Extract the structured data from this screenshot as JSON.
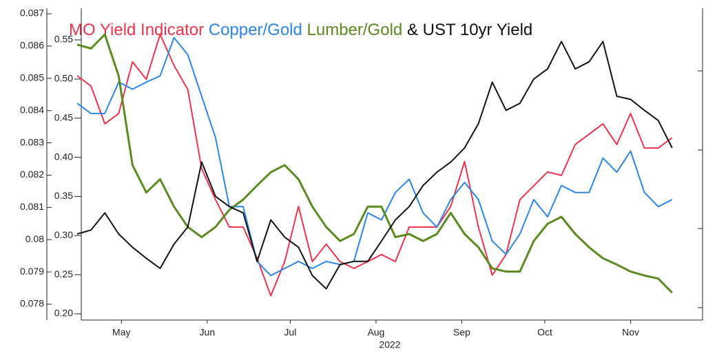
{
  "chart_data": {
    "type": "line",
    "legend_separator": "&",
    "x": [
      0,
      5,
      10,
      15,
      20,
      25,
      30,
      35,
      40,
      45,
      50,
      55,
      60,
      65,
      70,
      75,
      80,
      85,
      90,
      95,
      100,
      105,
      110,
      115,
      120,
      125,
      130,
      135,
      140,
      145,
      150,
      155,
      160,
      165,
      170,
      175,
      180,
      185,
      190,
      195,
      200,
      205,
      210,
      215
    ],
    "xlim": [
      0,
      226
    ],
    "xticks": [
      {
        "value": 16,
        "label": "May"
      },
      {
        "value": 47,
        "label": "Jun"
      },
      {
        "value": 77,
        "label": "Jul"
      },
      {
        "value": 108,
        "label": "Aug"
      },
      {
        "value": 139,
        "label": "Sep"
      },
      {
        "value": 169,
        "label": "Oct"
      },
      {
        "value": 200,
        "label": "Nov"
      }
    ],
    "xlabel": "2022",
    "ylim": [
      0.078,
      0.087
    ],
    "yticks": [
      0.078,
      0.079,
      0.08,
      0.081,
      0.082,
      0.083,
      0.084,
      0.085,
      0.086,
      0.087
    ],
    "y2lim": [
      0.2,
      0.55
    ],
    "y2ticks": [
      {
        "value": 0.2,
        "label": "0.20"
      },
      0.25,
      {
        "value": 0.3,
        "label": "0.30"
      },
      0.35,
      {
        "value": 0.4,
        "label": "0.40"
      },
      0.45,
      {
        "value": 0.5,
        "label": "0.50"
      },
      0.55
    ],
    "series": [
      {
        "name": "MO Yield Indicator",
        "color": "#f0324b",
        "values": [
          0.08508,
          0.08476,
          0.08359,
          0.08391,
          0.08551,
          0.08497,
          0.08636,
          0.0854,
          0.08465,
          0.0822,
          0.08124,
          0.08039,
          0.08039,
          0.07943,
          0.07826,
          0.07932,
          0.08103,
          0.07932,
          0.07986,
          0.07932,
          0.07911,
          0.07932,
          0.07954,
          0.07932,
          0.08039,
          0.08039,
          0.08039,
          0.08103,
          0.08242,
          0.08039,
          0.0789,
          0.07954,
          0.08124,
          0.08167,
          0.0821,
          0.08199,
          0.08295,
          0.08327,
          0.08359,
          0.08295,
          0.08391,
          0.08284,
          0.08284,
          0.08316
        ]
      },
      {
        "name": "Copper/Gold",
        "color": "#2a86e8",
        "axis": "y2",
        "values": [
          0.469,
          0.456,
          0.456,
          0.496,
          0.487,
          0.496,
          0.504,
          0.553,
          0.531,
          0.478,
          0.425,
          0.337,
          0.337,
          0.267,
          0.249,
          0.258,
          0.267,
          0.258,
          0.267,
          0.263,
          0.267,
          0.329,
          0.32,
          0.355,
          0.372,
          0.329,
          0.311,
          0.346,
          0.368,
          0.346,
          0.293,
          0.276,
          0.302,
          0.346,
          0.324,
          0.364,
          0.355,
          0.355,
          0.399,
          0.381,
          0.408,
          0.355,
          0.337,
          0.346
        ]
      },
      {
        "name": "Lumber/Gold",
        "color": "#5a8a1e",
        "axis": "y2",
        "values": [
          0.544,
          0.539,
          0.557,
          0.504,
          0.39,
          0.355,
          0.372,
          0.337,
          0.311,
          0.298,
          0.311,
          0.333,
          0.346,
          0.364,
          0.381,
          0.39,
          0.372,
          0.337,
          0.311,
          0.293,
          0.302,
          0.337,
          0.337,
          0.298,
          0.302,
          0.293,
          0.302,
          0.329,
          0.302,
          0.285,
          0.258,
          0.254,
          0.254,
          0.293,
          0.315,
          0.324,
          0.302,
          0.285,
          0.271,
          0.263,
          0.254,
          0.249,
          0.245,
          0.227
        ]
      },
      {
        "name": "UST 10yr Yield",
        "color": "#111111",
        "axis": "y2",
        "values": [
          0.302,
          0.307,
          0.329,
          0.302,
          0.285,
          0.271,
          0.258,
          0.289,
          0.311,
          0.394,
          0.35,
          0.337,
          0.329,
          0.267,
          0.32,
          0.298,
          0.285,
          0.249,
          0.232,
          0.263,
          0.267,
          0.267,
          0.293,
          0.32,
          0.337,
          0.364,
          0.381,
          0.394,
          0.412,
          0.443,
          0.496,
          0.46,
          0.469,
          0.5,
          0.513,
          0.548,
          0.513,
          0.522,
          0.548,
          0.478,
          0.474,
          0.46,
          0.447,
          0.412
        ]
      }
    ]
  }
}
